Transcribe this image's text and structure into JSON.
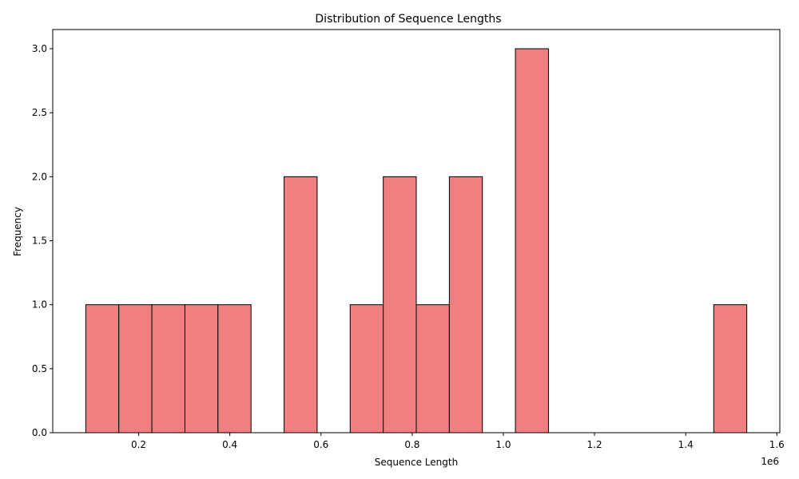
{
  "chart_data": {
    "type": "bar",
    "title": "Distribution of Sequence Lengths",
    "xlabel": "Sequence Length",
    "ylabel": "Frequency",
    "x_offset_text": "1e6",
    "bin_edges": [
      84000,
      156500,
      229000,
      301500,
      374000,
      446500,
      519000,
      591500,
      664000,
      736500,
      809000,
      881500,
      954000,
      1026500,
      1099000,
      1171500,
      1244000,
      1316500,
      1389000,
      1461500,
      1534000
    ],
    "counts": [
      1,
      1,
      1,
      1,
      1,
      0,
      2,
      0,
      1,
      2,
      1,
      2,
      0,
      3,
      0,
      0,
      0,
      0,
      0,
      1
    ],
    "xlim": [
      11500,
      1606500
    ],
    "ylim": [
      0,
      3.15
    ],
    "x_ticks": [
      200000,
      400000,
      600000,
      800000,
      1000000,
      1200000,
      1400000,
      1600000
    ],
    "x_tick_labels": [
      "0.2",
      "0.4",
      "0.6",
      "0.8",
      "1.0",
      "1.2",
      "1.4",
      "1.6"
    ],
    "y_ticks": [
      0,
      0.5,
      1.0,
      1.5,
      2.0,
      2.5,
      3.0
    ],
    "y_tick_labels": [
      "0.0",
      "0.5",
      "1.0",
      "1.5",
      "2.0",
      "2.5",
      "3.0"
    ],
    "bar_color": "#f08080",
    "edge_color": "#000000",
    "grid": false,
    "legend": "none"
  }
}
